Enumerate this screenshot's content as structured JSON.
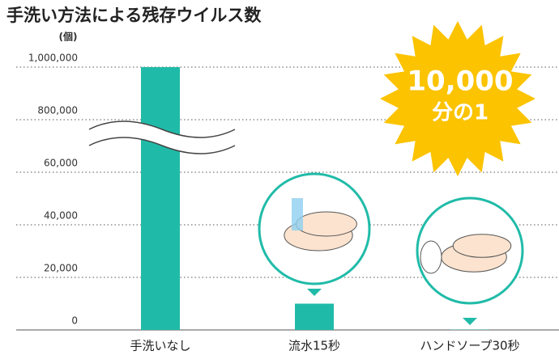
{
  "chart_data": {
    "type": "bar",
    "title": "手洗い方法による残存ウイルス数",
    "y_unit": "(個)",
    "categories": [
      "手洗いなし",
      "流水15秒",
      "ハンドソープ30秒"
    ],
    "values": [
      1000000,
      10000,
      100
    ],
    "color": "#20bba8",
    "ylim": [
      0,
      1000000
    ],
    "yticks": [
      0,
      {
        "value": 20000,
        "label": "20,000"
      },
      {
        "value": 40000,
        "label": "40,000"
      },
      {
        "value": 60000,
        "label": "60,000"
      },
      {
        "value": 800000,
        "label": "800,000"
      },
      {
        "value": 1000000,
        "label": "1,000,000"
      }
    ],
    "axis_break": true,
    "grid": true,
    "annotations": [
      "10,000",
      "分の1"
    ]
  }
}
